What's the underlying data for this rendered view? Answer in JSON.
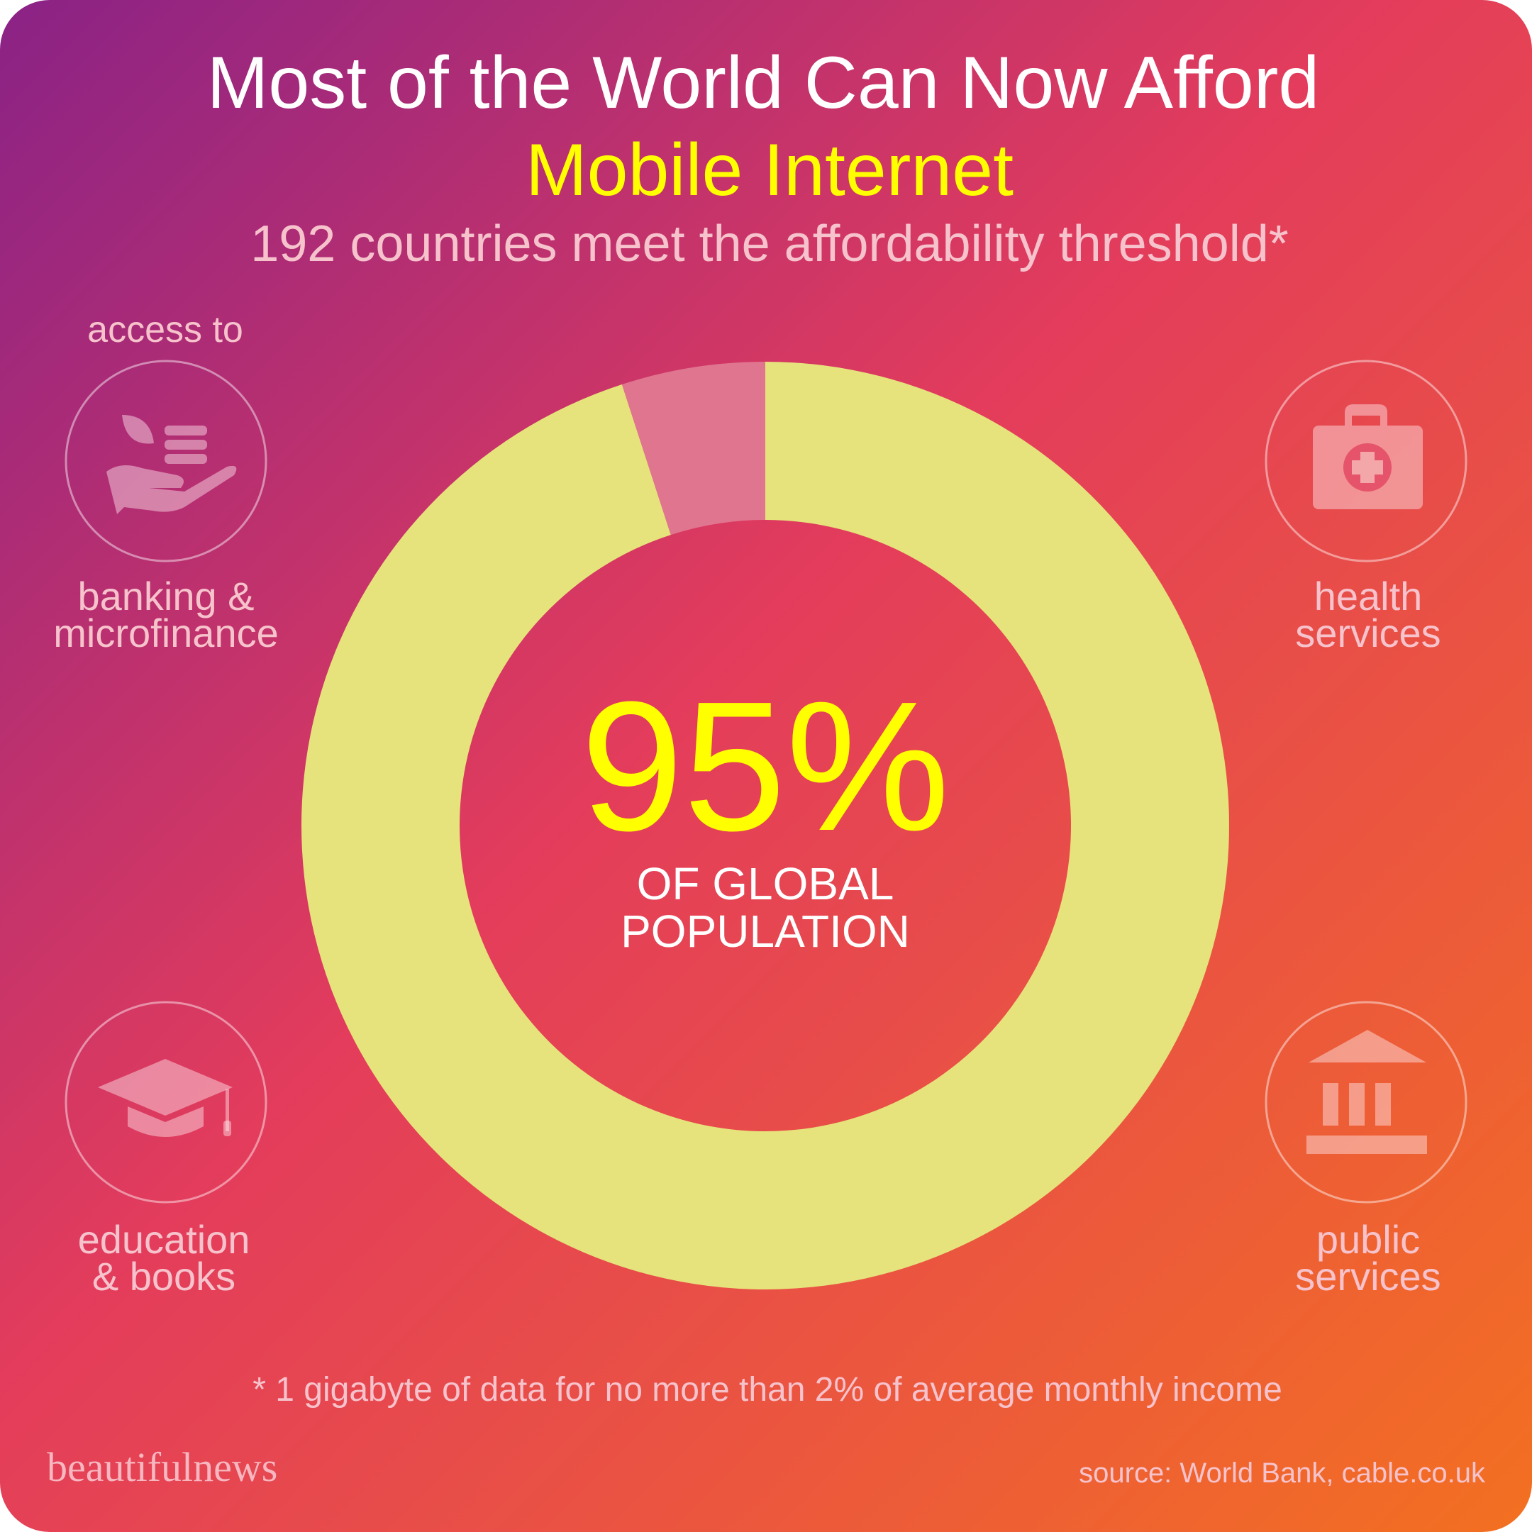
{
  "chart_data": {
    "type": "donut",
    "title": "Most of the World Can Now Afford",
    "subtitle": "Mobile Internet",
    "subheading": "192 countries meet the affordability threshold*",
    "values": [
      95,
      5
    ],
    "value_labels": [
      "95%",
      null
    ],
    "colors": [
      "#e6e37c",
      "#e07590"
    ],
    "center_text": [
      "OF GLOBAL",
      "POPULATION"
    ],
    "access_to": "access to",
    "services": [
      [
        "banking &",
        "microfinance"
      ],
      [
        "health",
        "services"
      ],
      [
        "education",
        "& books"
      ],
      [
        "public",
        "services"
      ]
    ],
    "note": "* 1 gigabyte of data for no more than 2% of average monthly income",
    "brand": "beautifulnews",
    "source": "source: World Bank, cable.co.uk"
  }
}
